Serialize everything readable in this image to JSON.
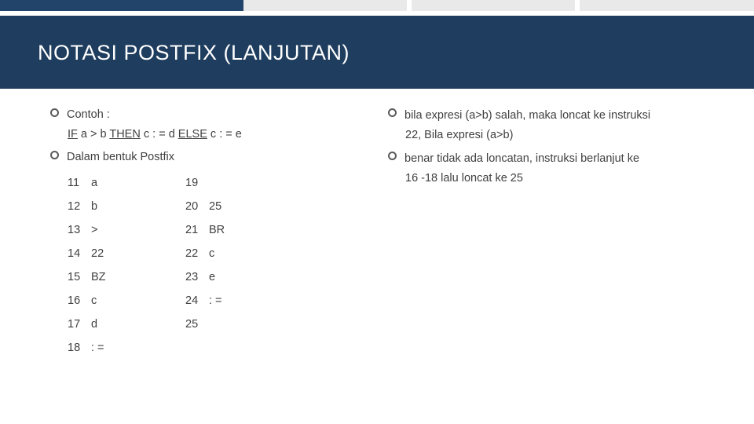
{
  "colors": {
    "band": "#1f3d5e",
    "accent": "#22436a",
    "strip": "#e9e9e9",
    "text": "#404040",
    "title": "#ffffff"
  },
  "title": "NOTASI POSTFIX (LANJUTAN)",
  "left": {
    "b1": "Contoh :",
    "code_if": "IF",
    "code_mid": " a > b ",
    "code_then": "THEN",
    "code_mid2": " c : = d ",
    "code_else": "ELSE",
    "code_tail": " c : = e",
    "b2": "Dalam bentuk Postfix",
    "colA": {
      "nums": [
        "11",
        "12",
        "13",
        "14",
        "15",
        "16",
        "17",
        "18"
      ],
      "vals": [
        "a",
        "b",
        ">",
        "22",
        "BZ",
        "c",
        "d",
        ": ="
      ]
    },
    "colB": {
      "nums": [
        "19",
        "20",
        "21",
        "22",
        "23",
        "24",
        "25"
      ],
      "vals": [
        "",
        "25",
        "BR",
        "c",
        "e",
        ": =",
        ""
      ]
    }
  },
  "right": {
    "b1": "bila expresi (a>b) salah, maka loncat ke instruksi",
    "b1_cont": "22, Bila expresi (a>b)",
    "b2": "benar tidak ada loncatan, instruksi berlanjut ke",
    "b2_cont": "16 -18 lalu loncat ke 25"
  }
}
